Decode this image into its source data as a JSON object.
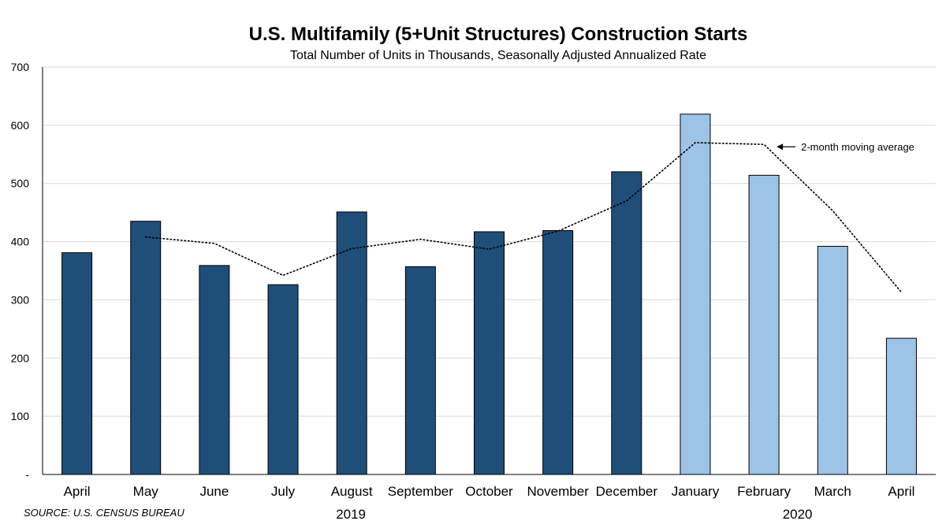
{
  "chart_data": {
    "type": "bar",
    "title": "U.S. Multifamily (5+Unit Structures) Construction Starts",
    "subtitle": "Total Number of Units in Thousands, Seasonally Adjusted Annualized Rate",
    "categories": [
      "April",
      "May",
      "June",
      "July",
      "August",
      "September",
      "October",
      "November",
      "December",
      "January",
      "February",
      "March",
      "April"
    ],
    "years": [
      {
        "label": "2019",
        "from": 0,
        "to": 8
      },
      {
        "label": "2020",
        "from": 9,
        "to": 12
      }
    ],
    "values": [
      381,
      435,
      359,
      326,
      451,
      357,
      417,
      419,
      520,
      619,
      514,
      392,
      234
    ],
    "moving_average": {
      "label": "2-month moving average",
      "values": [
        null,
        408,
        397,
        342,
        388,
        404,
        387,
        418,
        470,
        570,
        567,
        453,
        313
      ]
    },
    "ylim": [
      0,
      700
    ],
    "yticks": [
      {
        "value": 0,
        "label": "-"
      },
      {
        "value": 100,
        "label": "100"
      },
      {
        "value": 200,
        "label": "200"
      },
      {
        "value": 300,
        "label": "300"
      },
      {
        "value": 400,
        "label": "400"
      },
      {
        "value": 500,
        "label": "500"
      },
      {
        "value": 600,
        "label": "600"
      },
      {
        "value": 700,
        "label": "700"
      }
    ],
    "grid": true,
    "colors": {
      "2019": "#1f4e79",
      "2020": "#9dc3e6",
      "grid": "#d9d9d9",
      "axis": "#000000"
    }
  },
  "source": "SOURCE: U.S. CENSUS BUREAU"
}
